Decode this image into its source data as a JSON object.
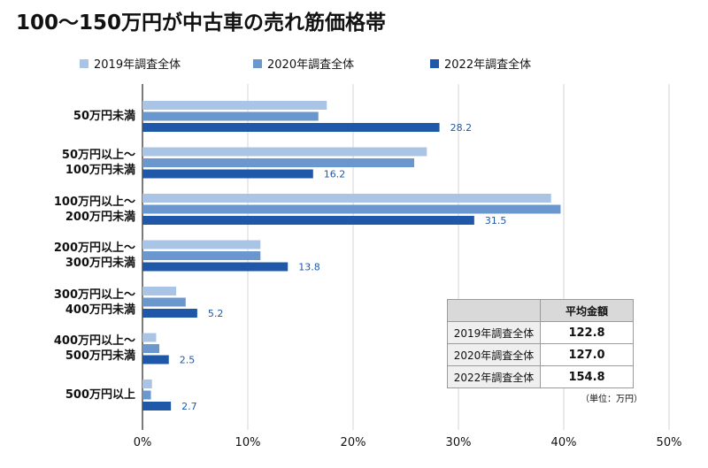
{
  "title": "100～150万円が中古車の売れ筋価格帯",
  "colors": {
    "series": [
      "#a9c4e4",
      "#6b97cf",
      "#1f58a8"
    ],
    "grid": "#d6d6d6",
    "value_label": "#1f58a8"
  },
  "chart_data": {
    "type": "bar",
    "orientation": "horizontal",
    "categories": [
      [
        "50万円未満"
      ],
      [
        "50万円以上～",
        "100万円未満"
      ],
      [
        "100万円以上～",
        "200万円未満"
      ],
      [
        "200万円以上～",
        "300万円未満"
      ],
      [
        "300万円以上～",
        "400万円未満"
      ],
      [
        "400万円以上～",
        "500万円未満"
      ],
      [
        "500万円以上"
      ]
    ],
    "series": [
      {
        "name": "2019年調査全体",
        "values": [
          17.5,
          27.0,
          38.8,
          11.2,
          3.2,
          1.3,
          0.9
        ]
      },
      {
        "name": "2020年調査全体",
        "values": [
          16.7,
          25.8,
          39.7,
          11.2,
          4.1,
          1.6,
          0.8
        ]
      },
      {
        "name": "2022年調査全体",
        "values": [
          28.2,
          16.2,
          31.5,
          13.8,
          5.2,
          2.5,
          2.7
        ]
      }
    ],
    "value_labels": [
      "28.2",
      "16.2",
      "31.5",
      "13.8",
      "5.2",
      "2.5",
      "2.7"
    ],
    "xlim": [
      0,
      50
    ],
    "xticks": [
      "0%",
      "10%",
      "20%",
      "30%",
      "40%",
      "50%"
    ],
    "grid": true,
    "legend_position": "top"
  },
  "avg_table": {
    "header": "平均金額",
    "rows": [
      {
        "label": "2019年調査全体",
        "value": "122.8"
      },
      {
        "label": "2020年調査全体",
        "value": "127.0"
      },
      {
        "label": "2022年調査全体",
        "value": "154.8"
      }
    ],
    "unit": "（単位：万円）"
  }
}
